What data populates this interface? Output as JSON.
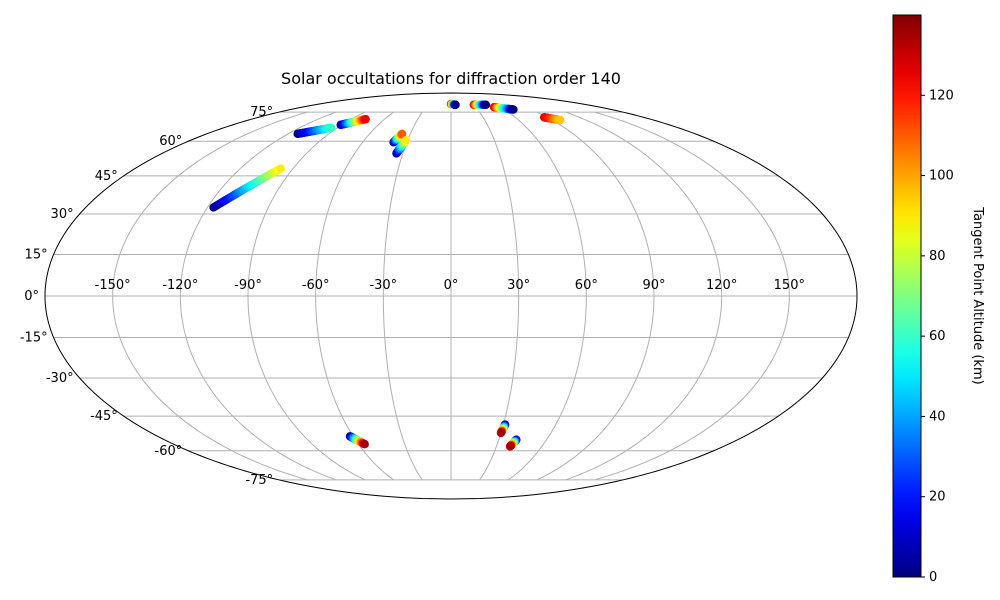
{
  "chart_data": {
    "type": "scatter",
    "projection": "mollweide",
    "title": "Solar occultations for diffraction order 140",
    "x_tick_labels": [
      "-150°",
      "-120°",
      "-90°",
      "-60°",
      "-30°",
      "0°",
      "30°",
      "60°",
      "90°",
      "120°",
      "150°"
    ],
    "x_tick_values": [
      -150,
      -120,
      -90,
      -60,
      -30,
      0,
      30,
      60,
      90,
      120,
      150
    ],
    "y_tick_labels": [
      "-75°",
      "-60°",
      "-45°",
      "-30°",
      "-15°",
      "0°",
      "15°",
      "30°",
      "45°",
      "60°",
      "75°"
    ],
    "y_tick_values": [
      -75,
      -60,
      -45,
      -30,
      -15,
      0,
      15,
      30,
      45,
      60,
      75
    ],
    "grid": true,
    "colorbar": {
      "label": "Tangent Point Altitude (km)",
      "colormap": "jet",
      "range": [
        0,
        140
      ],
      "tick_labels": [
        "0",
        "20",
        "40",
        "60",
        "80",
        "100",
        "120"
      ],
      "tick_values": [
        0,
        20,
        40,
        60,
        80,
        100,
        120
      ]
    },
    "occultations": [
      {
        "lon_start": -113,
        "lat_start": 63.5,
        "alt_start": 0,
        "lon_end": -95,
        "lat_end": 66.5,
        "alt_end": 60,
        "partial": true
      },
      {
        "lon_start": -91,
        "lat_start": 68.0,
        "alt_start": 0,
        "lon_end": -77,
        "lat_end": 71.0,
        "alt_end": 125
      },
      {
        "lon_start": -117,
        "lat_start": 32.5,
        "alt_start": 0,
        "lon_end": -97,
        "lat_end": 48.0,
        "alt_end": 90
      },
      {
        "lon_start": -39,
        "lat_start": 59.5,
        "alt_start": 0,
        "lon_end": -36,
        "lat_end": 63.5,
        "alt_end": 110
      },
      {
        "lon_start": -34,
        "lat_start": 54.5,
        "alt_start": 0,
        "lon_end": -31,
        "lat_end": 60.5,
        "alt_end": 90
      },
      {
        "lon_start": 0,
        "lat_start": 80.0,
        "alt_start": 130,
        "lon_end": 6,
        "lat_end": 79.5,
        "alt_end": 0
      },
      {
        "lon_start": 30,
        "lat_start": 79.5,
        "alt_start": 130,
        "lon_end": 46,
        "lat_end": 79.5,
        "alt_end": 0
      },
      {
        "lon_start": 52,
        "lat_start": 78.0,
        "alt_start": 130,
        "lon_end": 70,
        "lat_end": 76.5,
        "alt_end": 0
      },
      {
        "lon_start": 87,
        "lat_start": 72.0,
        "alt_start": 130,
        "lon_end": 97,
        "lat_end": 70.5,
        "alt_end": 95,
        "partial": true
      },
      {
        "lon_start": -62,
        "lat_start": -53.5,
        "alt_start": 0,
        "lon_end": -56,
        "lat_end": -57.0,
        "alt_end": 135
      },
      {
        "lon_start": 31,
        "lat_start": -48.5,
        "alt_start": 0,
        "lon_end": 30,
        "lat_end": -52.0,
        "alt_end": 135
      },
      {
        "lon_start": 41,
        "lat_start": -55.0,
        "alt_start": 0,
        "lon_end": 39,
        "lat_end": -58.0,
        "alt_end": 135
      }
    ]
  },
  "colors": {
    "grid": "#b0b0b0",
    "boundary": "#000000"
  }
}
